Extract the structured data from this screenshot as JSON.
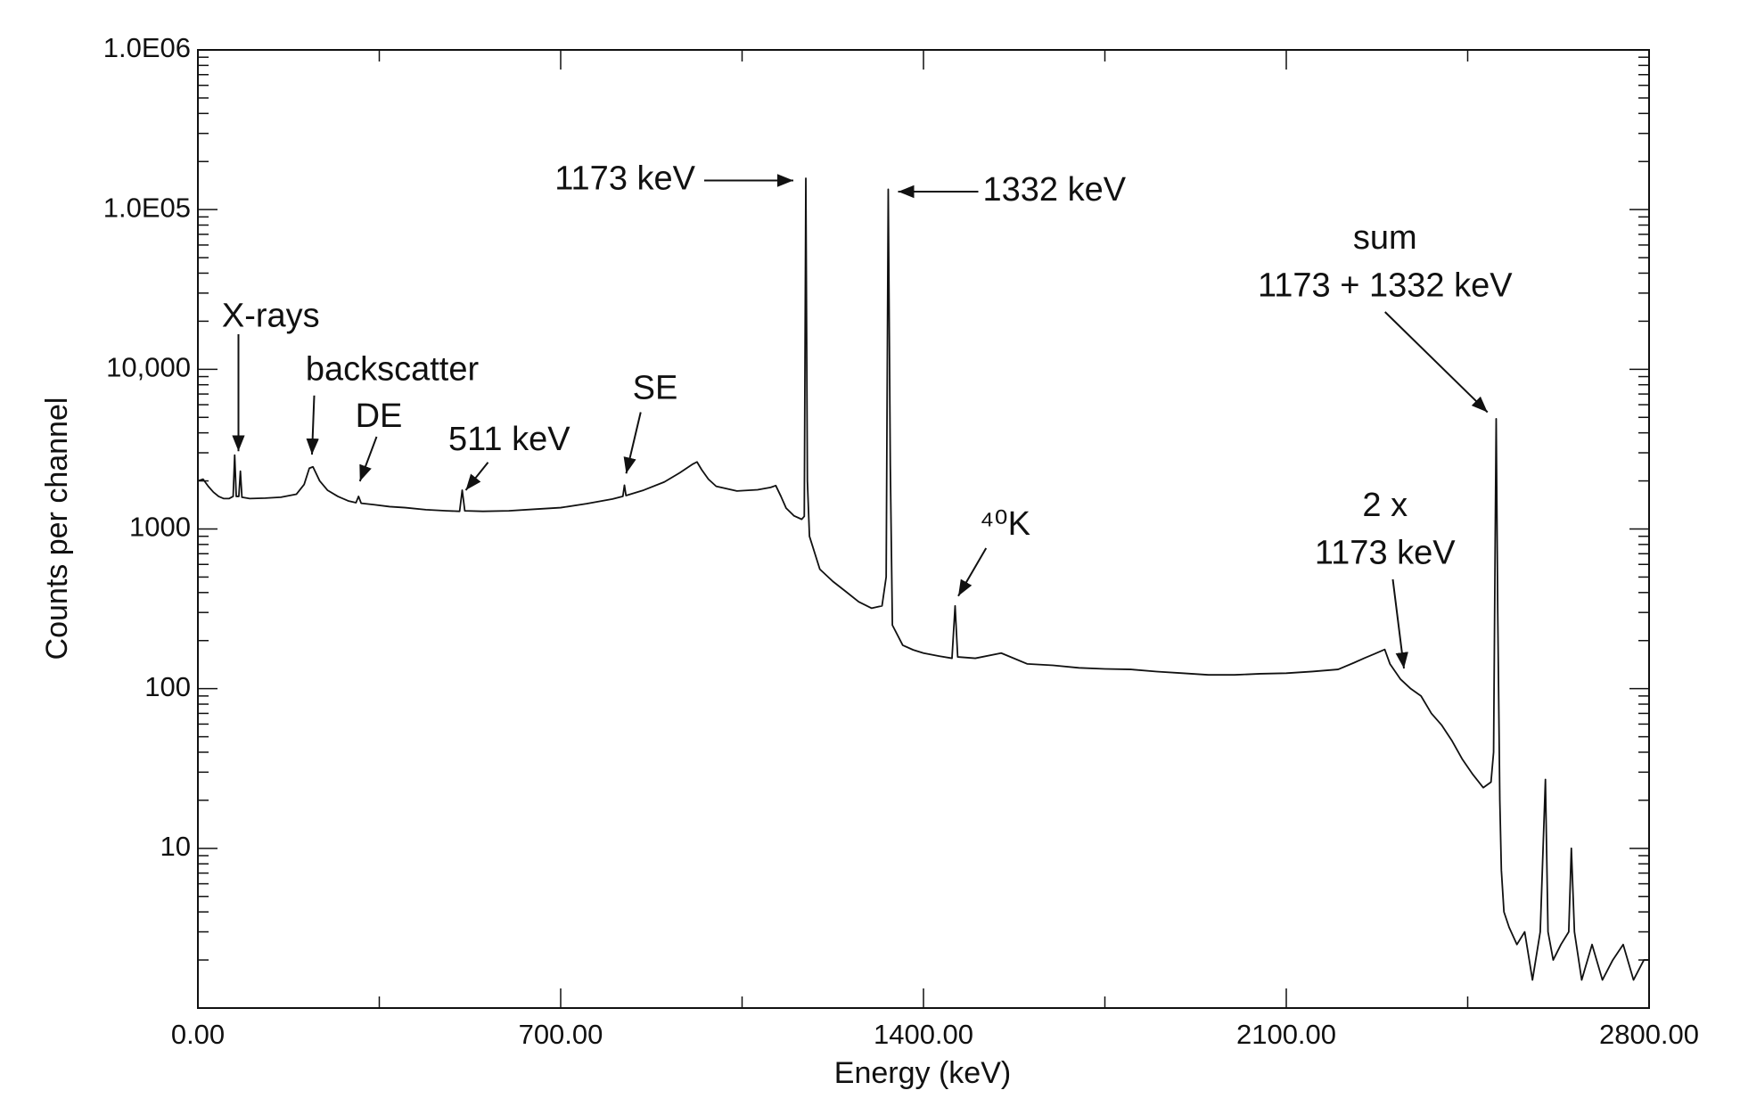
{
  "chart_data": {
    "type": "line",
    "x_label": "Energy (keV)",
    "y_label": "Counts per channel",
    "yscale": "log",
    "xlim": [
      0,
      2800
    ],
    "ylim": [
      1,
      1000000
    ],
    "xticks": [
      {
        "value": 0,
        "label": "0.00"
      },
      {
        "value": 700,
        "label": "700.00"
      },
      {
        "value": 1400,
        "label": "1400.00"
      },
      {
        "value": 2100,
        "label": "2100.00"
      },
      {
        "value": 2800,
        "label": "2800.00"
      }
    ],
    "xminor": [
      350,
      1050,
      1750,
      2450
    ],
    "yticks": [
      10,
      100,
      1000,
      {
        "value": 10000,
        "label": "10,000"
      },
      {
        "value": 100000,
        "label": "1.0E05"
      },
      {
        "value": 1000000,
        "label": "1.0E06"
      }
    ],
    "grid": false,
    "color": "#111111",
    "annotations": [
      "X-rays",
      "backscatter",
      "DE",
      "511 keV",
      "SE",
      "1173 keV",
      "1332 keV",
      "sum",
      "1173 + 1332 keV",
      "⁴⁰K",
      "2 x",
      "1173 keV"
    ],
    "x": [
      0,
      10,
      20,
      30,
      40,
      50,
      60,
      68,
      71,
      74,
      79,
      82,
      85,
      100,
      130,
      160,
      190,
      205,
      215,
      222,
      235,
      250,
      270,
      290,
      305,
      310,
      315,
      340,
      370,
      400,
      440,
      480,
      505,
      510,
      515,
      550,
      600,
      650,
      700,
      750,
      800,
      820,
      823,
      826,
      860,
      900,
      930,
      955,
      963,
      972,
      985,
      1000,
      1040,
      1080,
      1105,
      1115,
      1125,
      1135,
      1150,
      1165,
      1170,
      1173,
      1176,
      1180,
      1200,
      1225,
      1250,
      1275,
      1300,
      1320,
      1328,
      1332,
      1336,
      1340,
      1360,
      1380,
      1400,
      1430,
      1455,
      1461,
      1466,
      1500,
      1550,
      1600,
      1650,
      1700,
      1750,
      1800,
      1850,
      1900,
      1950,
      2000,
      2050,
      2100,
      2150,
      2200,
      2230,
      2250,
      2270,
      2290,
      2300,
      2320,
      2340,
      2360,
      2380,
      2400,
      2420,
      2440,
      2460,
      2480,
      2495,
      2500,
      2503,
      2505,
      2508,
      2512,
      2515,
      2520,
      2530,
      2545,
      2560,
      2575,
      2590,
      2600,
      2605,
      2615,
      2630,
      2645,
      2650,
      2656,
      2670,
      2690,
      2710,
      2730,
      2750,
      2770,
      2790,
      2800
    ],
    "values": [
      2000,
      2050,
      1850,
      1700,
      1600,
      1550,
      1550,
      1600,
      2900,
      1600,
      1600,
      2300,
      1580,
      1550,
      1560,
      1580,
      1650,
      1900,
      2400,
      2450,
      2000,
      1750,
      1600,
      1500,
      1460,
      1600,
      1450,
      1420,
      1380,
      1360,
      1320,
      1300,
      1290,
      1750,
      1300,
      1290,
      1300,
      1330,
      1360,
      1440,
      1540,
      1600,
      1880,
      1620,
      1750,
      1970,
      2250,
      2550,
      2630,
      2350,
      2050,
      1850,
      1730,
      1760,
      1820,
      1870,
      1600,
      1350,
      1210,
      1150,
      1200,
      157000,
      2000,
      900,
      560,
      470,
      406,
      350,
      319,
      330,
      500,
      134000,
      2500,
      250,
      187,
      175,
      167,
      160,
      155,
      330,
      158,
      155,
      167,
      143,
      140,
      135,
      133,
      132,
      128,
      125,
      122,
      122,
      124,
      125,
      128,
      132,
      145,
      155,
      165,
      176,
      143,
      115,
      100,
      90,
      70,
      59,
      47,
      36,
      29,
      24,
      26,
      40,
      800,
      4900,
      300,
      20,
      7.3,
      4,
      3.2,
      2.5,
      3,
      1.5,
      3,
      27,
      3,
      2,
      2.5,
      3,
      10,
      3,
      1.5,
      2.5,
      1.5,
      2,
      2.5,
      1.5,
      2,
      2
    ]
  }
}
